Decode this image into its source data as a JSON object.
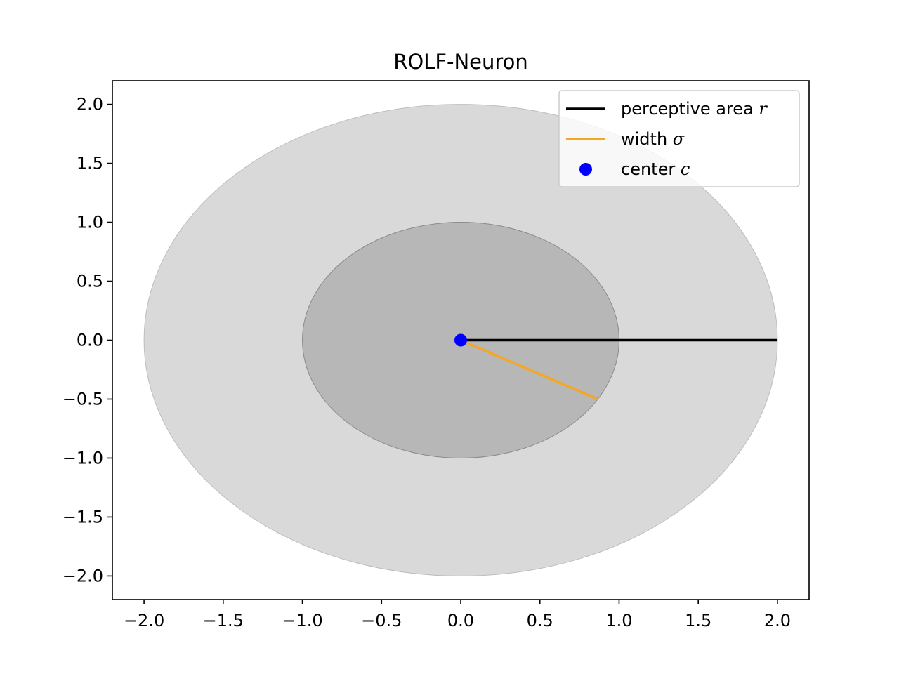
{
  "chart_data": {
    "type": "scatter",
    "title": "ROLF-Neuron",
    "xlabel": "",
    "ylabel": "",
    "xlim": [
      -2.2,
      2.2
    ],
    "ylim": [
      -2.2,
      2.2
    ],
    "xticks": [
      -2.0,
      -1.5,
      -1.0,
      -0.5,
      0.0,
      0.5,
      1.0,
      1.5,
      2.0
    ],
    "yticks": [
      -2.0,
      -1.5,
      -1.0,
      -0.5,
      0.0,
      0.5,
      1.0,
      1.5,
      2.0
    ],
    "grid": false,
    "legend_position": "top-right",
    "regions": [
      {
        "shape": "circle",
        "center": [
          0,
          0
        ],
        "radius": 2.0,
        "fill": "#d9d9d9",
        "stroke": "#bdbdbd"
      },
      {
        "shape": "circle",
        "center": [
          0,
          0
        ],
        "radius": 1.0,
        "fill": "#b7b7b7",
        "stroke": "#8a8a8a"
      }
    ],
    "series": [
      {
        "name": "perceptive area",
        "symbol": "r",
        "kind": "line",
        "color": "#000000",
        "x": [
          0,
          2.0
        ],
        "y": [
          0,
          0
        ]
      },
      {
        "name": "width",
        "symbol": "σ",
        "kind": "line",
        "color": "#f5a623",
        "x": [
          0,
          0.866
        ],
        "y": [
          0,
          -0.5
        ]
      },
      {
        "name": "center",
        "symbol": "c",
        "kind": "point",
        "color": "#0000ff",
        "x": [
          0
        ],
        "y": [
          0
        ]
      }
    ]
  }
}
